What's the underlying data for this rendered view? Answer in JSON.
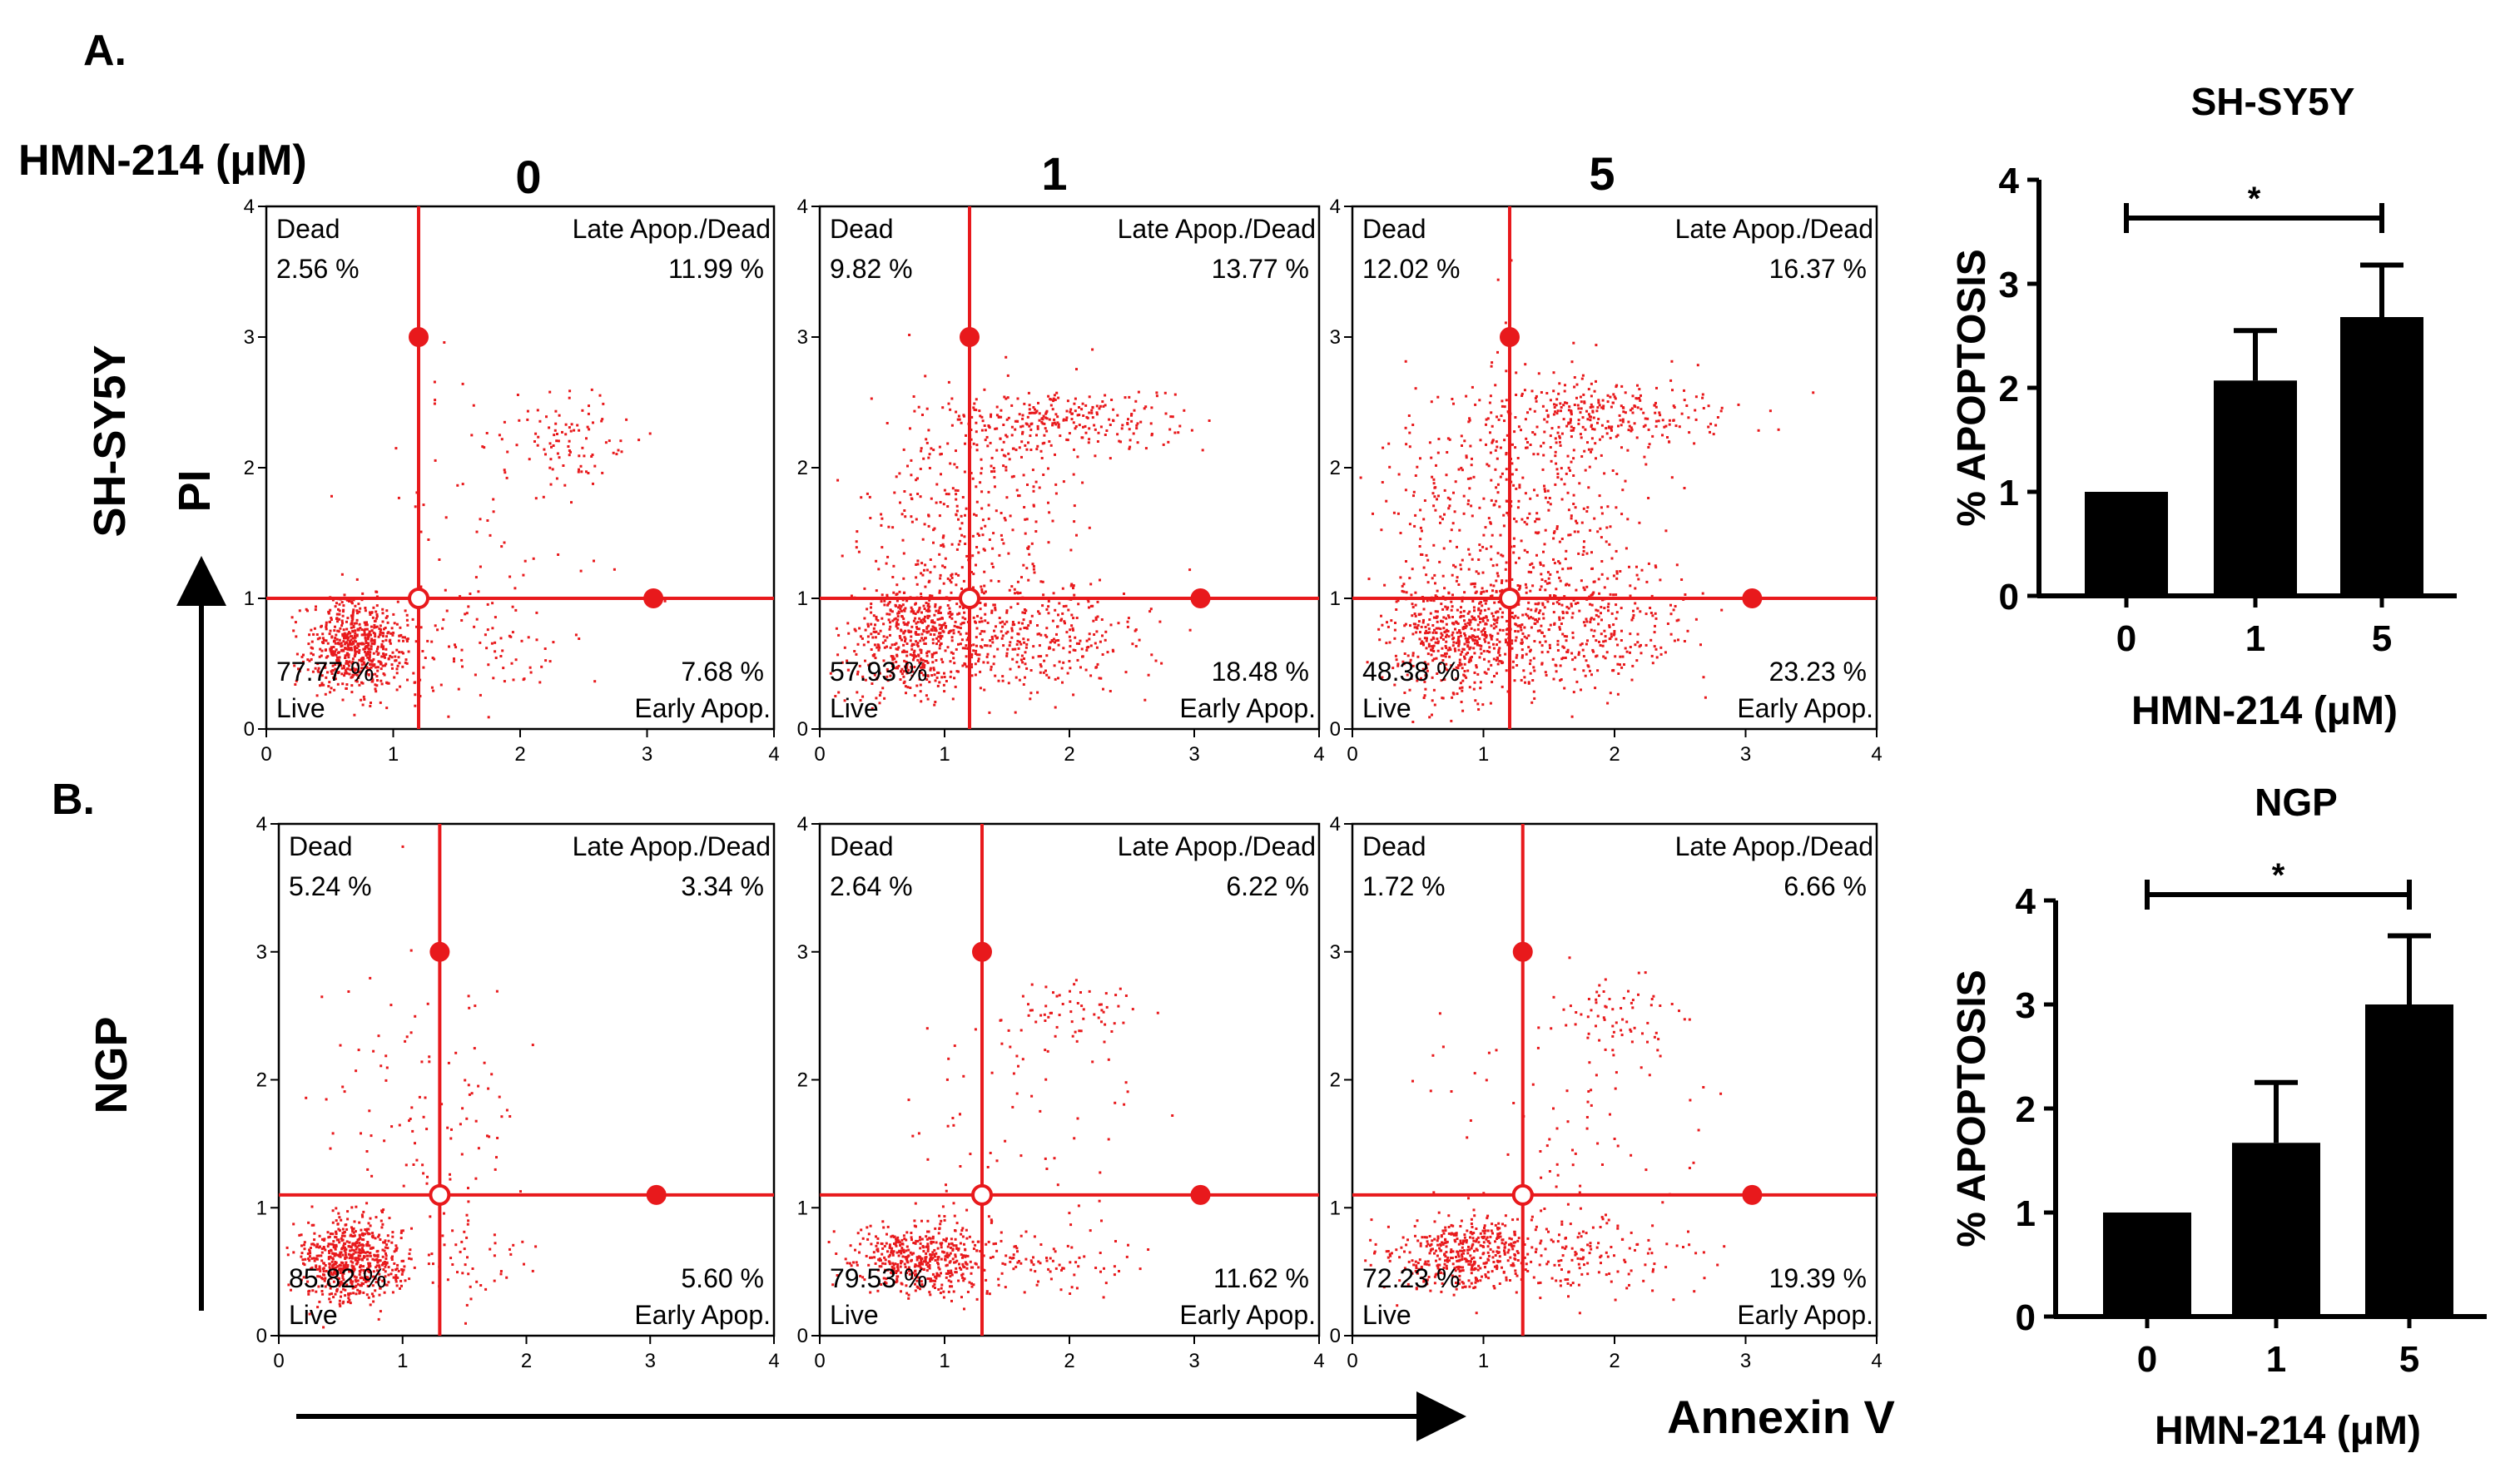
{
  "panel_labels": {
    "a": "A.",
    "b": "B."
  },
  "dose_header": {
    "label": "HMN-214 (μM)",
    "doses": [
      "0",
      "1",
      "5"
    ]
  },
  "row_labels": {
    "top": "SH-SY5Y",
    "bottom": "NGP"
  },
  "axis_labels": {
    "y": "PI",
    "x": "Annexin V"
  },
  "quadrant_names": {
    "dead": "Dead",
    "late": "Late Apop./Dead",
    "live": "Live",
    "early": "Early Apop."
  },
  "colors": {
    "dots": "#e8191c",
    "bars": "#000000",
    "axes": "#000000"
  },
  "chart_data": [
    {
      "type": "scatter",
      "title": "SH-SY5Y HMN-214 0 μM",
      "xlabel": "Annexin V",
      "ylabel": "PI",
      "xlim": [
        0,
        4
      ],
      "ylim": [
        0,
        4
      ],
      "ticks": [
        "0",
        "1",
        "2",
        "3",
        "4"
      ],
      "gate": {
        "x": 1.2,
        "y": 1.0
      },
      "quadrants": {
        "dead": "2.56 %",
        "late": "11.99 %",
        "live": "77.77 %",
        "early": "7.68 %"
      },
      "clusters": [
        {
          "cx": 0.7,
          "cy": 0.65,
          "sx": 0.2,
          "sy": 0.18,
          "n": 620
        },
        {
          "cx": 1.6,
          "cy": 0.6,
          "sx": 0.4,
          "sy": 0.22,
          "n": 90
        },
        {
          "cx": 2.35,
          "cy": 2.25,
          "sx": 0.25,
          "sy": 0.16,
          "n": 90
        },
        {
          "cx": 1.7,
          "cy": 1.6,
          "sx": 0.5,
          "sy": 0.5,
          "n": 60
        }
      ]
    },
    {
      "type": "scatter",
      "title": "SH-SY5Y HMN-214 1 μM",
      "xlabel": "Annexin V",
      "ylabel": "PI",
      "xlim": [
        0,
        4
      ],
      "ylim": [
        0,
        4
      ],
      "ticks": [
        "0",
        "1",
        "2",
        "3",
        "4"
      ],
      "gate": {
        "x": 1.2,
        "y": 1.0
      },
      "quadrants": {
        "dead": "9.82 %",
        "late": "13.77 %",
        "live": "57.93 %",
        "early": "18.48 %"
      },
      "clusters": [
        {
          "cx": 0.75,
          "cy": 0.7,
          "sx": 0.25,
          "sy": 0.22,
          "n": 520
        },
        {
          "cx": 1.7,
          "cy": 0.7,
          "sx": 0.45,
          "sy": 0.2,
          "n": 320
        },
        {
          "cx": 1.9,
          "cy": 2.35,
          "sx": 0.45,
          "sy": 0.12,
          "n": 260
        },
        {
          "cx": 1.2,
          "cy": 1.6,
          "sx": 0.45,
          "sy": 0.5,
          "n": 360
        }
      ]
    },
    {
      "type": "scatter",
      "title": "SH-SY5Y HMN-214 5 μM",
      "xlabel": "Annexin V",
      "ylabel": "PI",
      "xlim": [
        0,
        4
      ],
      "ylim": [
        0,
        4
      ],
      "ticks": [
        "0",
        "1",
        "2",
        "3",
        "4"
      ],
      "gate": {
        "x": 1.2,
        "y": 1.0
      },
      "quadrants": {
        "dead": "12.02 %",
        "late": "16.37 %",
        "live": "48.38 %",
        "early": "23.23 %"
      },
      "clusters": [
        {
          "cx": 0.8,
          "cy": 0.7,
          "sx": 0.25,
          "sy": 0.22,
          "n": 480
        },
        {
          "cx": 1.6,
          "cy": 0.8,
          "sx": 0.45,
          "sy": 0.25,
          "n": 420
        },
        {
          "cx": 1.85,
          "cy": 2.4,
          "sx": 0.45,
          "sy": 0.15,
          "n": 280
        },
        {
          "cx": 1.2,
          "cy": 1.7,
          "sx": 0.5,
          "sy": 0.5,
          "n": 450
        }
      ]
    },
    {
      "type": "scatter",
      "title": "NGP HMN-214 0 μM",
      "xlabel": "Annexin V",
      "ylabel": "PI",
      "xlim": [
        0,
        4
      ],
      "ylim": [
        0,
        4
      ],
      "ticks": [
        "0",
        "1",
        "2",
        "3",
        "4"
      ],
      "gate": {
        "x": 1.3,
        "y": 1.1
      },
      "quadrants": {
        "dead": "5.24 %",
        "late": "3.34 %",
        "live": "85.82 %",
        "early": "5.60 %"
      },
      "clusters": [
        {
          "cx": 0.6,
          "cy": 0.6,
          "sx": 0.2,
          "sy": 0.16,
          "n": 620
        },
        {
          "cx": 1.5,
          "cy": 0.55,
          "sx": 0.3,
          "sy": 0.2,
          "n": 50
        },
        {
          "cx": 1.2,
          "cy": 1.6,
          "sx": 0.45,
          "sy": 0.55,
          "n": 110
        }
      ]
    },
    {
      "type": "scatter",
      "title": "NGP HMN-214 1 μM",
      "xlabel": "Annexin V",
      "ylabel": "PI",
      "xlim": [
        0,
        4
      ],
      "ylim": [
        0,
        4
      ],
      "ticks": [
        "0",
        "1",
        "2",
        "3",
        "4"
      ],
      "gate": {
        "x": 1.3,
        "y": 1.1
      },
      "quadrants": {
        "dead": "2.64 %",
        "late": "6.22 %",
        "live": "79.53 %",
        "early": "11.62 %"
      },
      "clusters": [
        {
          "cx": 0.8,
          "cy": 0.62,
          "sx": 0.3,
          "sy": 0.14,
          "n": 480
        },
        {
          "cx": 1.8,
          "cy": 0.6,
          "sx": 0.35,
          "sy": 0.15,
          "n": 80
        },
        {
          "cx": 2.0,
          "cy": 2.55,
          "sx": 0.25,
          "sy": 0.15,
          "n": 60
        },
        {
          "cx": 1.5,
          "cy": 1.6,
          "sx": 0.5,
          "sy": 0.5,
          "n": 70
        }
      ]
    },
    {
      "type": "scatter",
      "title": "NGP HMN-214 5 μM",
      "xlabel": "Annexin V",
      "ylabel": "PI",
      "xlim": [
        0,
        4
      ],
      "ylim": [
        0,
        4
      ],
      "ticks": [
        "0",
        "1",
        "2",
        "3",
        "4"
      ],
      "gate": {
        "x": 1.3,
        "y": 1.1
      },
      "quadrants": {
        "dead": "1.72 %",
        "late": "6.66 %",
        "live": "72.23 %",
        "early": "19.39 %"
      },
      "clusters": [
        {
          "cx": 0.85,
          "cy": 0.65,
          "sx": 0.28,
          "sy": 0.14,
          "n": 440
        },
        {
          "cx": 1.8,
          "cy": 0.65,
          "sx": 0.35,
          "sy": 0.15,
          "n": 130
        },
        {
          "cx": 2.0,
          "cy": 2.5,
          "sx": 0.25,
          "sy": 0.18,
          "n": 70
        },
        {
          "cx": 1.6,
          "cy": 1.6,
          "sx": 0.5,
          "sy": 0.5,
          "n": 80
        }
      ]
    },
    {
      "type": "bar",
      "title": "SH-SY5Y",
      "xlabel": "HMN-214 (μM)",
      "ylabel": "% APOPTOSIS",
      "categories": [
        "0",
        "1",
        "5"
      ],
      "values": [
        1.0,
        2.07,
        2.68
      ],
      "errors": [
        0,
        0.48,
        0.5
      ],
      "ylim": [
        0,
        4
      ],
      "yticks": [
        "0",
        "1",
        "2",
        "3",
        "4"
      ],
      "significance": {
        "from": "0",
        "to": "5",
        "label": "*"
      }
    },
    {
      "type": "bar",
      "title": "NGP",
      "xlabel": "HMN-214 (μM)",
      "ylabel": "% APOPTOSIS",
      "categories": [
        "0",
        "1",
        "5"
      ],
      "values": [
        1.0,
        1.67,
        3.0
      ],
      "errors": [
        0,
        0.58,
        0.66
      ],
      "ylim": [
        0,
        4
      ],
      "yticks": [
        "0",
        "1",
        "2",
        "3",
        "4"
      ],
      "significance": {
        "from": "0",
        "to": "5",
        "label": "*"
      }
    }
  ]
}
